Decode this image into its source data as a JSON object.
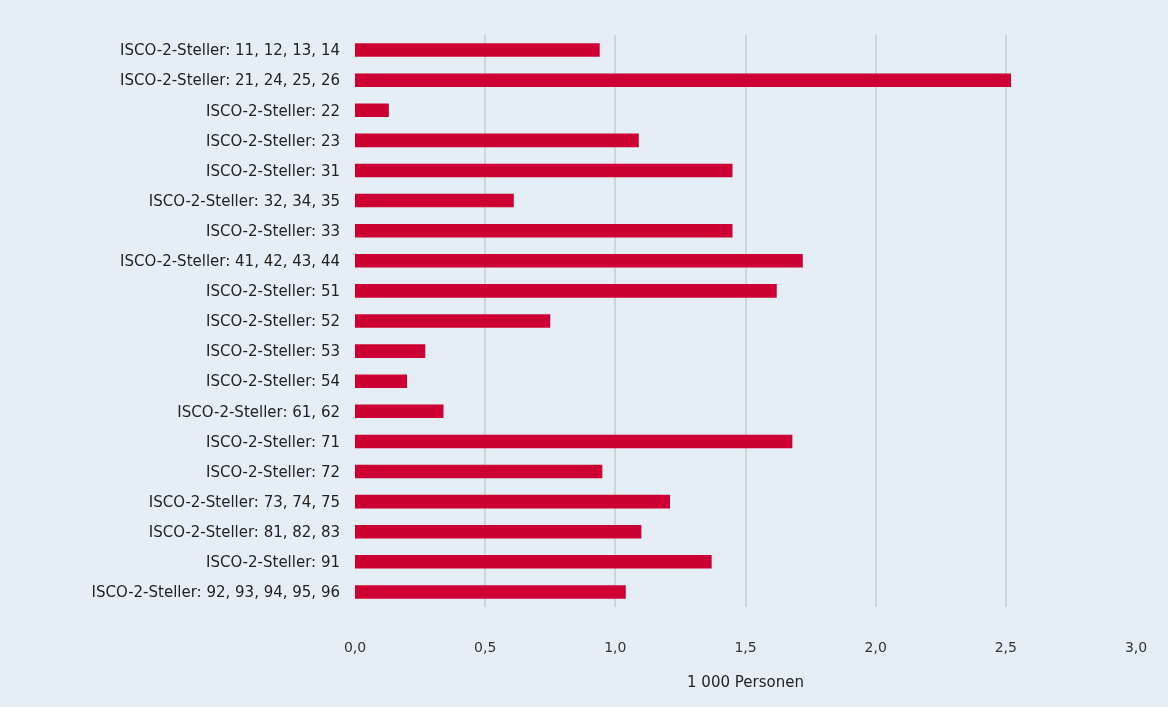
{
  "chart_data": {
    "type": "bar",
    "orientation": "horizontal",
    "xlabel": "1 000 Personen",
    "categories": [
      "ISCO-2-Steller: 11, 12, 13, 14",
      "ISCO-2-Steller: 21, 24, 25, 26",
      "ISCO-2-Steller: 22",
      "ISCO-2-Steller: 23",
      "ISCO-2-Steller: 31",
      "ISCO-2-Steller: 32, 34, 35",
      "ISCO-2-Steller: 33",
      "ISCO-2-Steller: 41, 42, 43, 44",
      "ISCO-2-Steller: 51",
      "ISCO-2-Steller: 52",
      "ISCO-2-Steller: 53",
      "ISCO-2-Steller: 54",
      "ISCO-2-Steller: 61, 62",
      "ISCO-2-Steller: 71",
      "ISCO-2-Steller: 72",
      "ISCO-2-Steller: 73, 74, 75",
      "ISCO-2-Steller: 81, 82, 83",
      "ISCO-2-Steller: 91",
      "ISCO-2-Steller: 92, 93, 94, 95, 96"
    ],
    "values": [
      0.94,
      2.52,
      0.13,
      1.09,
      1.45,
      0.61,
      1.45,
      1.72,
      1.62,
      0.75,
      0.27,
      0.2,
      0.34,
      1.68,
      0.95,
      1.21,
      1.1,
      1.37,
      1.04
    ],
    "color": "#cc0033",
    "xlim": [
      0,
      3.0
    ],
    "xticks": [
      {
        "value": 0,
        "label": "0,0"
      },
      {
        "value": 0.5,
        "label": "0,5"
      },
      {
        "value": 1,
        "label": "1,0"
      },
      {
        "value": 1.5,
        "label": "1,5"
      },
      {
        "value": 2,
        "label": "2,0"
      },
      {
        "value": 2.5,
        "label": "2,5"
      },
      {
        "value": 3,
        "label": "3,0"
      }
    ],
    "grid": "x"
  }
}
